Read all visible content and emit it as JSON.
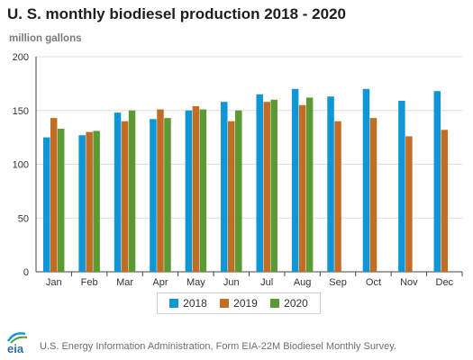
{
  "title": "U. S. monthly biodiesel production 2018 - 2020",
  "unit_label": "million gallons",
  "source": "U.S. Energy Information Administration, Form EIA-22M Biodiesel Monthly Survey.",
  "logo_text": "eia",
  "colors": {
    "2018": "#0e96d6",
    "2019": "#c26d24",
    "2020": "#5b9a33",
    "grid": "#dcdcdc",
    "axis": "#444444"
  },
  "chart_data": {
    "type": "bar",
    "title": "U. S. monthly biodiesel production 2018 - 2020",
    "ylabel": "million gallons",
    "xlabel": "",
    "ylim": [
      0,
      200
    ],
    "yticks": [
      0,
      50,
      100,
      150,
      200
    ],
    "grid": true,
    "legend_position": "bottom",
    "categories": [
      "Jan",
      "Feb",
      "Mar",
      "Apr",
      "May",
      "Jun",
      "Jul",
      "Aug",
      "Sep",
      "Oct",
      "Nov",
      "Dec"
    ],
    "series": [
      {
        "name": "2018",
        "values": [
          125,
          127,
          148,
          142,
          150,
          158,
          165,
          170,
          163,
          170,
          159,
          168
        ]
      },
      {
        "name": "2019",
        "values": [
          143,
          130,
          140,
          151,
          154,
          140,
          158,
          155,
          140,
          143,
          126,
          132
        ]
      },
      {
        "name": "2020",
        "values": [
          133,
          131,
          150,
          143,
          151,
          150,
          160,
          162,
          null,
          null,
          null,
          null
        ]
      }
    ]
  }
}
